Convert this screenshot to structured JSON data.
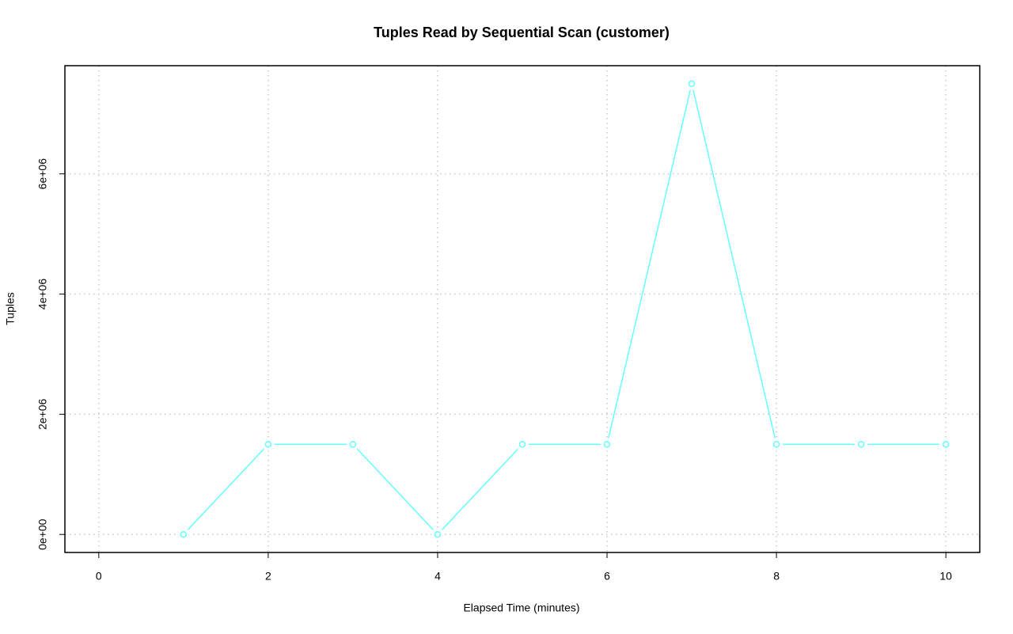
{
  "chart_data": {
    "type": "line",
    "title": "Tuples Read by Sequential Scan (customer)",
    "x_label": "Elapsed Time (minutes)",
    "y_label": "Tuples",
    "x": [
      1,
      2,
      3,
      4,
      5,
      6,
      7,
      8,
      9,
      10
    ],
    "series": [
      {
        "color": "#66ffff",
        "values": [
          0,
          1500000,
          1500000,
          0,
          1500000,
          1500000,
          7500000,
          1500000,
          1500000,
          1500000
        ]
      }
    ],
    "xlim": [
      -0.4,
      10.4
    ],
    "xticks": [
      0,
      2,
      4,
      6,
      8,
      10
    ],
    "ylim": [
      -300000,
      7800000
    ],
    "yticks": [
      {
        "value": 0,
        "label": "0e+00"
      },
      {
        "value": 2000000,
        "label": "2e+06"
      },
      {
        "value": 4000000,
        "label": "4e+06"
      },
      {
        "value": 6000000,
        "label": "6e+06"
      }
    ],
    "grid": true
  }
}
